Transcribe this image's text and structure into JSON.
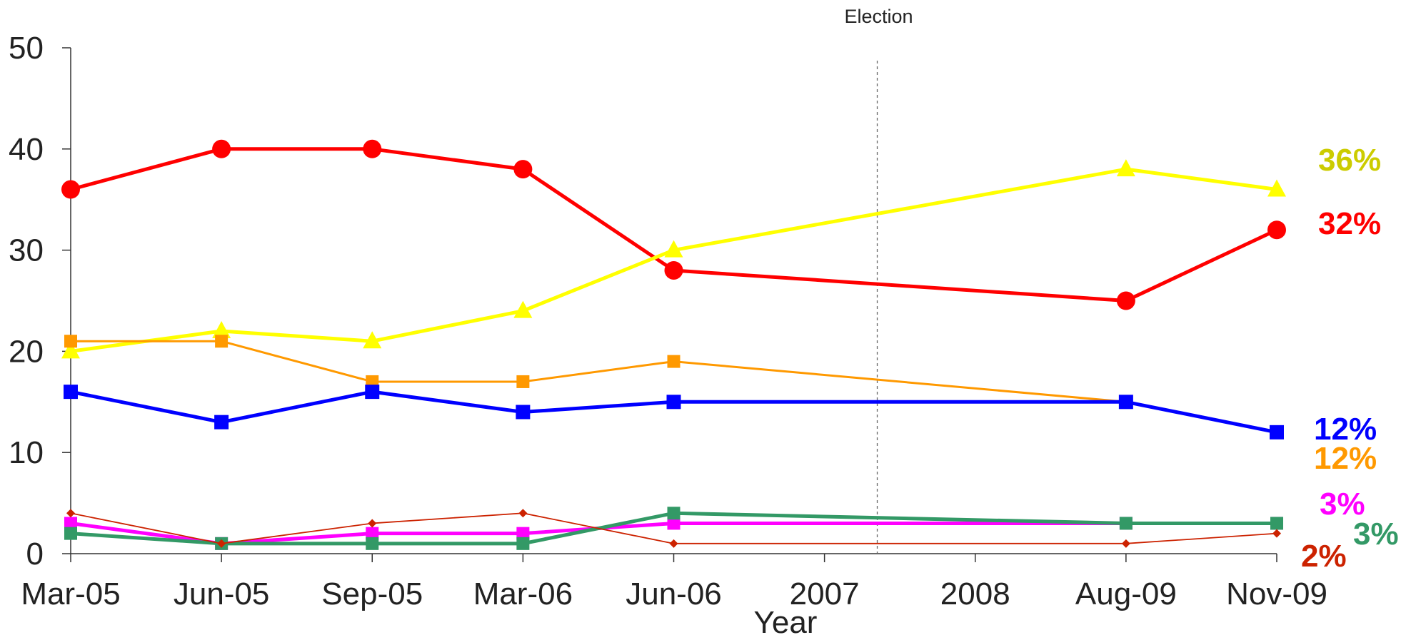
{
  "chart_data": {
    "type": "line",
    "categories": [
      "Mar-05",
      "Jun-05",
      "Sep-05",
      "Mar-06",
      "Jun-06",
      "2007",
      "2008",
      "Aug-09",
      "Nov-09"
    ],
    "xlabel": "Year",
    "ylabel": "",
    "ylim": [
      0,
      50
    ],
    "yticks": [
      0,
      10,
      20,
      30,
      40,
      50
    ],
    "grid": false,
    "annotation": {
      "label": "Election",
      "position": "between 2007 and 2008",
      "line_style": "dashed"
    },
    "series": [
      {
        "color": "#ff0000",
        "marker": "circle",
        "values": [
          36,
          40,
          40,
          38,
          28,
          null,
          null,
          25,
          32
        ],
        "end_label": "32%"
      },
      {
        "color": "#ffff00",
        "marker": "triangle",
        "values": [
          20,
          22,
          21,
          24,
          30,
          null,
          null,
          38,
          36
        ],
        "end_label": "36%",
        "end_label_color": "#cccc00"
      },
      {
        "color": "#ff9900",
        "marker": "square",
        "values": [
          21,
          21,
          17,
          17,
          19,
          null,
          null,
          15,
          12
        ],
        "end_label": "12%"
      },
      {
        "color": "#0000ff",
        "marker": "square",
        "values": [
          16,
          13,
          16,
          14,
          15,
          null,
          null,
          15,
          12
        ],
        "end_label": "12%"
      },
      {
        "color": "#ff00ff",
        "marker": "square",
        "values": [
          3,
          1,
          2,
          2,
          3,
          null,
          null,
          3,
          3
        ],
        "end_label": "3%"
      },
      {
        "color": "#339966",
        "marker": "square",
        "values": [
          2,
          1,
          1,
          1,
          4,
          null,
          null,
          3,
          3
        ],
        "end_label": "3%"
      },
      {
        "color": "#cc2200",
        "marker": "diamond",
        "values": [
          4,
          1,
          3,
          4,
          1,
          null,
          null,
          1,
          2
        ],
        "end_label": "2%"
      }
    ]
  }
}
